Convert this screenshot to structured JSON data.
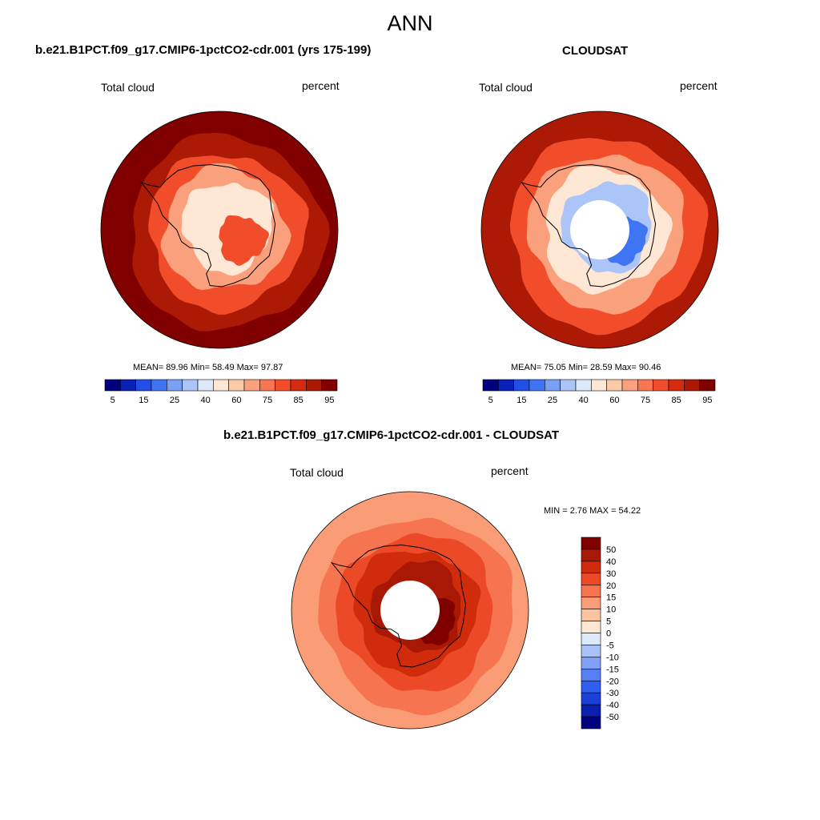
{
  "figure": {
    "title": "ANN"
  },
  "colors": {
    "continent_line": "#000000",
    "polar_hole": "#ffffff",
    "absolute_palette": [
      "#00007f",
      "#0a21b8",
      "#1f4fe6",
      "#3f74f2",
      "#7aa0f5",
      "#abc5f8",
      "#dbe9fb",
      "#fee7d4",
      "#fccaa9",
      "#fba07c",
      "#f87652",
      "#f24d2a",
      "#d62b0f",
      "#ac1a06",
      "#800000"
    ],
    "difference_palette": [
      "#00007f",
      "#0a1fae",
      "#1a40da",
      "#2f5ef0",
      "#5681f4",
      "#80a1f6",
      "#a9c2f9",
      "#dce9fb",
      "#fde7d4",
      "#fbc3a0",
      "#fa9c76",
      "#f6744f",
      "#ec4a27",
      "#d02c0c",
      "#a81905",
      "#800000"
    ]
  },
  "panels": [
    {
      "id": "model",
      "title": "b.e21.B1PCT.f09_g17.CMIP6-1pctCO2-cdr.001 (yrs 175-199)",
      "left_label": "Total cloud",
      "right_label": "percent",
      "stats": "MEAN=  89.96  Min=  58.49  Max=  97.87",
      "colorbar_ticks": [
        "5",
        "15",
        "25",
        "40",
        "60",
        "75",
        "85",
        "95"
      ],
      "field_levels": {
        "ocean_outer": 95,
        "ocean_mid": 85,
        "ocean_inner": 75,
        "coast": 60,
        "interior": 40,
        "interior_low": 75
      }
    },
    {
      "id": "obs",
      "title": "CLOUDSAT",
      "left_label": "Total cloud",
      "right_label": "percent",
      "stats": "MEAN=  75.05  Min=  28.59  Max=  90.46",
      "colorbar_ticks": [
        "5",
        "15",
        "25",
        "40",
        "60",
        "75",
        "85",
        "95"
      ],
      "field_levels": {
        "ocean_outer": 85,
        "ocean_mid": 75,
        "ocean_inner": 60,
        "coast": 40,
        "interior": 25,
        "interior_low": 15
      }
    },
    {
      "id": "diff",
      "title": "b.e21.B1PCT.f09_g17.CMIP6-1pctCO2-cdr.001 - CLOUDSAT",
      "left_label": "Total cloud",
      "right_label": "percent",
      "stats": "MIN =   2.76 MAX =  54.22",
      "colorbar_ticks": [
        "50",
        "40",
        "30",
        "20",
        "15",
        "10",
        "5",
        "0",
        "-5",
        "-10",
        "-15",
        "-20",
        "-30",
        "-40",
        "-50"
      ],
      "field_levels": {
        "ocean_outer": 10,
        "ocean_mid": 15,
        "ocean_inner": 20,
        "coast": 30,
        "interior": 40,
        "interior_low": 50
      }
    }
  ]
}
